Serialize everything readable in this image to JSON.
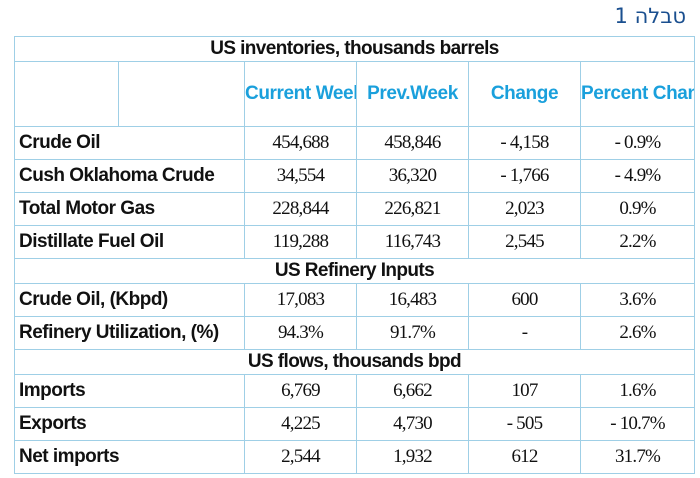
{
  "page_label": "טבלה 1",
  "sections": {
    "inventories": "US inventories, thousands barrels",
    "refinery": "US Refinery Inputs",
    "flows": "US flows, thousands bpd"
  },
  "columns": {
    "current": "Current Week",
    "previous": "Prev.Week",
    "change": "Change",
    "percent": "Percent Change"
  },
  "rows": [
    {
      "label": "Crude Oil",
      "current": "454,688",
      "previous": "458,846",
      "change": "- 4,158",
      "percent": "- 0.9%"
    },
    {
      "label": "Cush Oklahoma Crude",
      "current": "34,554",
      "previous": "36,320",
      "change": "- 1,766",
      "percent": "- 4.9%"
    },
    {
      "label": "Total Motor Gas",
      "current": "228,844",
      "previous": "226,821",
      "change": "2,023",
      "percent": "0.9%"
    },
    {
      "label": "Distillate Fuel Oil",
      "current": "119,288",
      "previous": "116,743",
      "change": "2,545",
      "percent": "2.2%"
    },
    {
      "label": "Crude Oil, (Kbpd)",
      "current": "17,083",
      "previous": "16,483",
      "change": "600",
      "percent": "3.6%"
    },
    {
      "label": "Refinery Utilization, (%)",
      "current": "94.3%",
      "previous": "91.7%",
      "change": "-",
      "percent": "2.6%"
    },
    {
      "label": "Imports",
      "current": "6,769",
      "previous": "6,662",
      "change": "107",
      "percent": "1.6%"
    },
    {
      "label": "Exports",
      "current": "4,225",
      "previous": "4,730",
      "change": "- 505",
      "percent": "- 10.7%"
    },
    {
      "label": "Net imports",
      "current": "2,544",
      "previous": "1,932",
      "change": "612",
      "percent": "31.7%"
    }
  ]
}
